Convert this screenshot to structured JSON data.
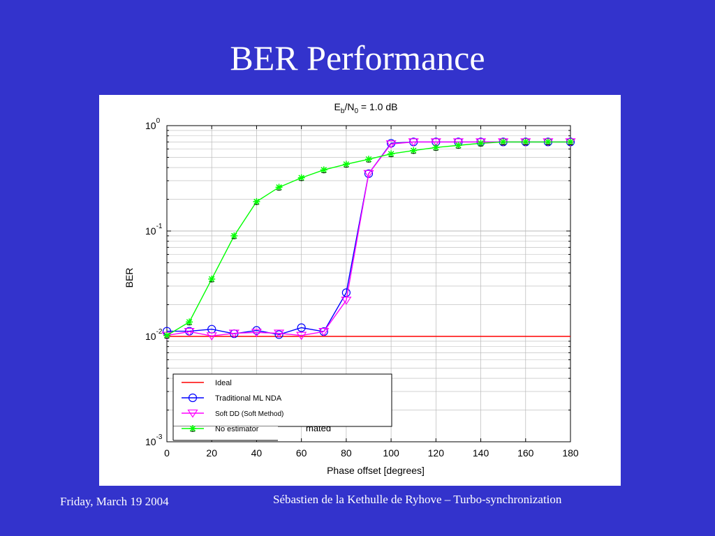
{
  "slide": {
    "title": "BER Performance",
    "footer_left": "Friday, March 19 2004",
    "footer_right": "Sébastien de la Kethulle de Ryhove – Turbo-synchronization"
  },
  "chart_data": {
    "type": "line",
    "title_base": "E",
    "title_sub1": "b",
    "title_mid": "/N",
    "title_sub2": "0",
    "title_rest": " = 1.0 dB",
    "xlabel": "Phase offset [degrees]",
    "ylabel": "BER",
    "xlim": [
      0,
      180
    ],
    "ylim": [
      0.001,
      1
    ],
    "yscale": "log",
    "grid": true,
    "legend_position": "bottom-left",
    "x_ticks": [
      "0",
      "20",
      "40",
      "60",
      "80",
      "100",
      "120",
      "140",
      "160",
      "180"
    ],
    "y_ticks": [
      {
        "base": "10",
        "exp": "0"
      },
      {
        "base": "10",
        "exp": "-1"
      },
      {
        "base": "10",
        "exp": "-2"
      },
      {
        "base": "10",
        "exp": "-3"
      }
    ],
    "x": [
      0,
      10,
      20,
      30,
      40,
      50,
      60,
      70,
      80,
      90,
      100,
      110,
      120,
      130,
      140,
      150,
      160,
      170,
      180
    ],
    "series": [
      {
        "name": "Ideal",
        "color": "#ff0000",
        "marker": "none",
        "values": [
          0.01,
          0.01,
          0.01,
          0.01,
          0.01,
          0.01,
          0.01,
          0.01,
          0.01,
          0.01,
          0.01,
          0.01,
          0.01,
          0.01,
          0.01,
          0.01,
          0.01,
          0.01,
          0.01
        ]
      },
      {
        "name": "Traditional ML NDA",
        "color": "#0000ff",
        "marker": "circle",
        "values": [
          0.0112,
          0.0112,
          0.0117,
          0.0106,
          0.0114,
          0.0104,
          0.0121,
          0.0111,
          0.026,
          0.35,
          0.68,
          0.7,
          0.7,
          0.7,
          0.7,
          0.7,
          0.7,
          0.7,
          0.7
        ]
      },
      {
        "name": "Soft DD (Soft Method)",
        "color": "#ff00ff",
        "marker": "triangle-down",
        "values": [
          0.0102,
          0.0111,
          0.0101,
          0.0107,
          0.0109,
          0.0107,
          0.0102,
          0.0111,
          0.022,
          0.35,
          0.67,
          0.7,
          0.7,
          0.7,
          0.7,
          0.7,
          0.7,
          0.7,
          0.7
        ]
      },
      {
        "name": "No estimator",
        "color": "#00ff00",
        "marker": "star",
        "values": [
          0.0102,
          0.0137,
          0.035,
          0.09,
          0.19,
          0.26,
          0.32,
          0.38,
          0.43,
          0.48,
          0.54,
          0.58,
          0.62,
          0.65,
          0.68,
          0.7,
          0.7,
          0.7,
          0.7
        ]
      }
    ],
    "legend_overlap_fragment": "mated"
  },
  "icons": {
    "circle": "circle-marker-icon",
    "triangle-down": "triangle-marker-icon",
    "star": "star-marker-icon"
  }
}
